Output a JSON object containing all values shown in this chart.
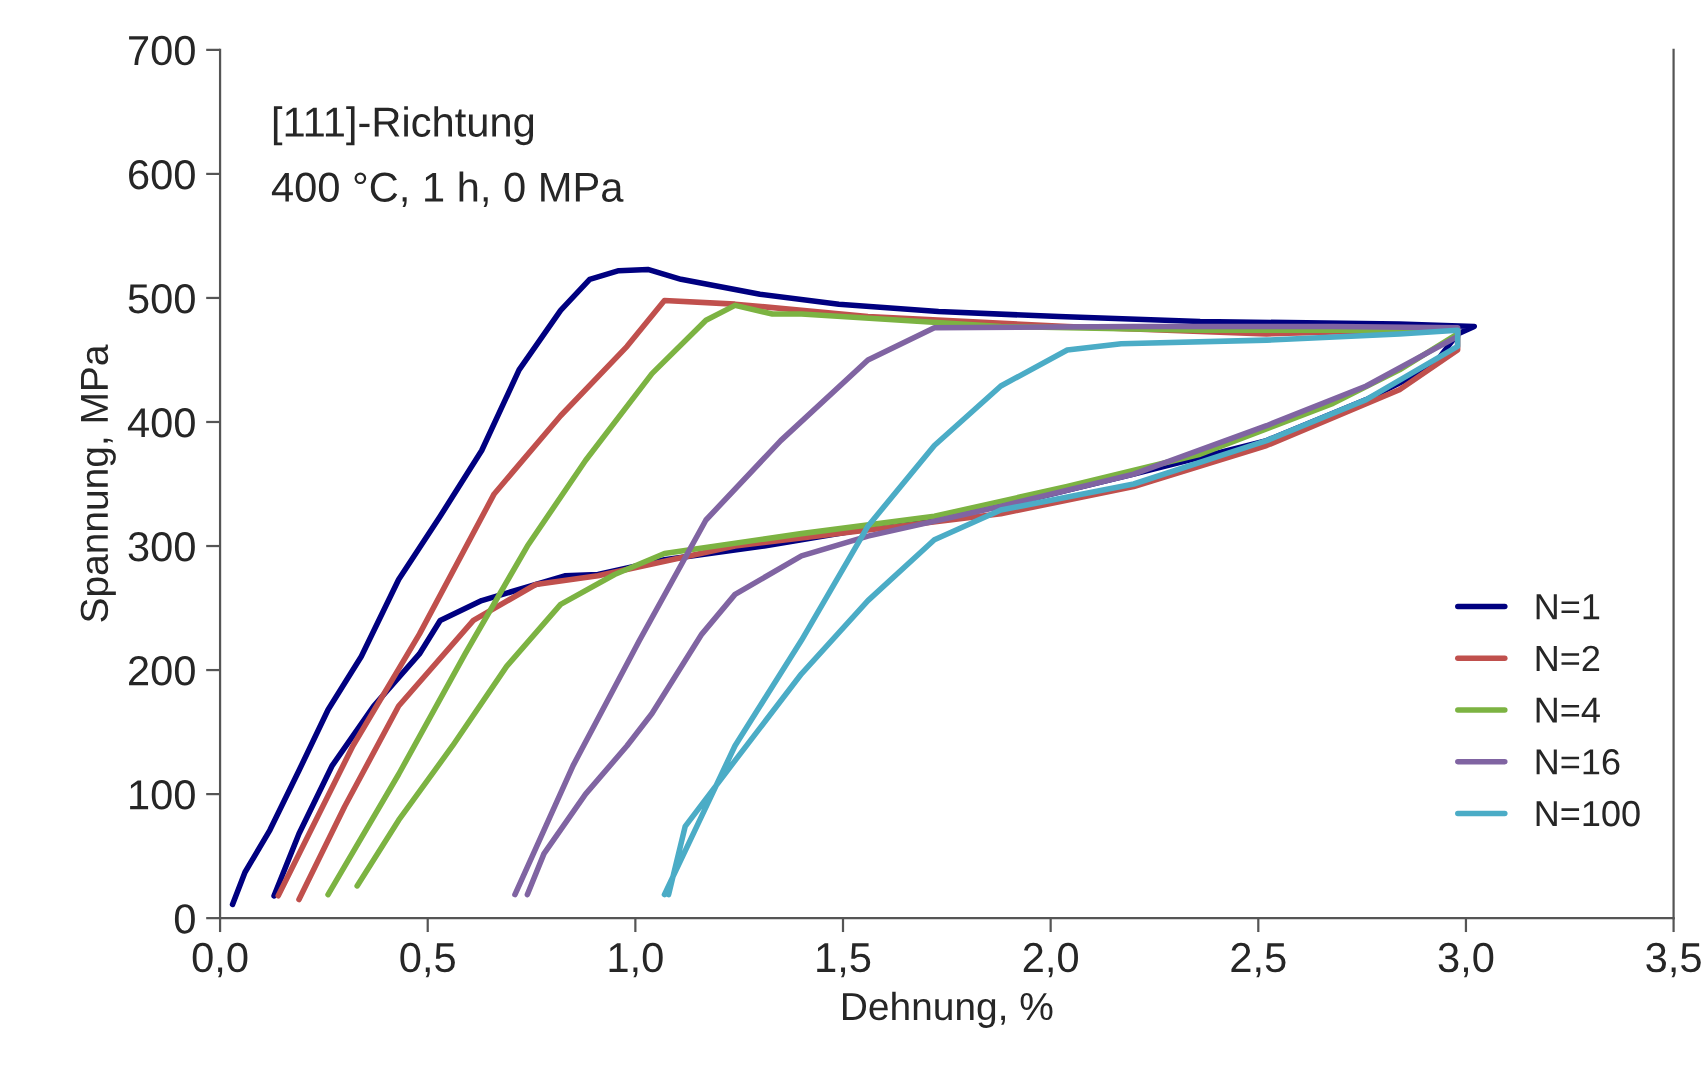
{
  "chart_data": {
    "type": "line",
    "xlabel": "Dehnung, %",
    "ylabel": "Spannung, MPa",
    "annotations": [
      "[111]-Richtung",
      "400 °C, 1 h, 0 MPa"
    ],
    "xlim": [
      0,
      3.5
    ],
    "ylim": [
      0,
      700
    ],
    "xticks": [
      {
        "value": 0,
        "label": "0,0"
      },
      {
        "value": 0.5,
        "label": "0,5"
      },
      {
        "value": 1,
        "label": "1,0"
      },
      {
        "value": 1.5,
        "label": "1,5"
      },
      {
        "value": 2,
        "label": "2,0"
      },
      {
        "value": 2.5,
        "label": "2,5"
      },
      {
        "value": 3,
        "label": "3,0"
      },
      {
        "value": 3.5,
        "label": "3,5"
      }
    ],
    "yticks": [
      0,
      100,
      200,
      300,
      400,
      500,
      600,
      700
    ],
    "grid": false,
    "legend": "bottom right",
    "marker": "none",
    "line_style": "solid",
    "series": [
      {
        "name": "N=1",
        "color": "#000080",
        "x": [
          0.03,
          0.06,
          0.12,
          0.19,
          0.26,
          0.34,
          0.43,
          0.53,
          0.63,
          0.72,
          0.82,
          0.89,
          0.96,
          1.03,
          1.11,
          1.3,
          1.49,
          1.73,
          2.02,
          2.36,
          2.84,
          3.02,
          2.98,
          2.92,
          2.76,
          2.52,
          2.2,
          1.88,
          1.4,
          1.31,
          1.07,
          0.91,
          0.83,
          0.63,
          0.53,
          0.48,
          0.37,
          0.27,
          0.19,
          0.13
        ],
        "values": [
          11,
          37,
          71,
          119,
          168,
          211,
          273,
          324,
          377,
          442,
          490,
          515,
          522,
          523,
          515,
          503,
          495,
          489,
          485,
          481,
          479,
          477,
          471,
          445,
          418,
          385,
          358,
          332,
          305,
          300,
          289,
          277,
          276,
          256,
          240,
          213,
          171,
          123,
          68,
          18
        ]
      },
      {
        "name": "N=2",
        "color": "#c0504d",
        "x": [
          0.14,
          0.32,
          0.48,
          0.66,
          0.82,
          0.98,
          1.07,
          1.24,
          1.56,
          2.04,
          2.52,
          2.84,
          2.98,
          2.98,
          2.84,
          2.52,
          2.2,
          1.88,
          1.56,
          1.24,
          0.91,
          0.76,
          0.61,
          0.43,
          0.3,
          0.19
        ],
        "values": [
          18,
          139,
          229,
          342,
          405,
          461,
          498,
          495,
          485,
          477,
          471,
          474,
          474,
          458,
          426,
          381,
          348,
          326,
          313,
          300,
          276,
          269,
          240,
          171,
          90,
          15
        ]
      },
      {
        "name": "N=4",
        "color": "#7cb342",
        "x": [
          0.26,
          0.43,
          0.59,
          0.74,
          0.88,
          1.04,
          1.17,
          1.24,
          1.33,
          1.4,
          1.88,
          2.36,
          2.98,
          2.98,
          2.84,
          2.68,
          2.36,
          2.04,
          1.72,
          1.4,
          1.07,
          0.95,
          0.82,
          0.69,
          0.56,
          0.43,
          0.33
        ],
        "values": [
          19,
          116,
          213,
          300,
          369,
          439,
          482,
          494,
          487,
          487,
          477,
          474,
          474,
          471,
          442,
          415,
          374,
          348,
          324,
          310,
          294,
          277,
          253,
          203,
          139,
          79,
          26
        ]
      },
      {
        "name": "N=16",
        "color": "#8064a2",
        "x": [
          0.71,
          0.85,
          1.01,
          1.17,
          1.35,
          1.56,
          1.72,
          2.2,
          2.68,
          2.98,
          2.98,
          2.76,
          2.52,
          2.2,
          1.88,
          1.56,
          1.4,
          1.24,
          1.16,
          1.04,
          0.98,
          0.88,
          0.78,
          0.74
        ],
        "values": [
          19,
          123,
          224,
          321,
          385,
          450,
          476,
          477,
          477,
          476,
          469,
          429,
          397,
          358,
          332,
          308,
          292,
          261,
          229,
          165,
          139,
          100,
          52,
          19
        ]
      },
      {
        "name": "N=100",
        "color": "#4bacc6",
        "x": [
          1.07,
          1.24,
          1.4,
          1.56,
          1.72,
          1.88,
          2.04,
          2.17,
          2.52,
          2.84,
          2.98,
          2.98,
          2.76,
          2.52,
          2.2,
          1.88,
          1.72,
          1.56,
          1.4,
          1.24,
          1.12,
          1.08
        ],
        "values": [
          19,
          139,
          224,
          316,
          381,
          429,
          458,
          463,
          466,
          471,
          474,
          461,
          418,
          385,
          350,
          329,
          305,
          256,
          197,
          127,
          74,
          19
        ]
      }
    ]
  }
}
